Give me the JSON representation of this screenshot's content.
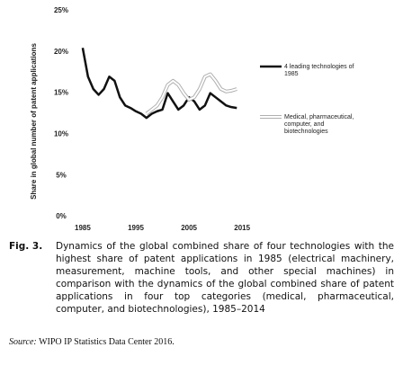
{
  "chart_data": {
    "type": "line",
    "y_label": "Share in global number of patent applications",
    "x": [
      1985,
      1986,
      1987,
      1988,
      1989,
      1990,
      1991,
      1992,
      1993,
      1994,
      1995,
      1996,
      1997,
      1998,
      1999,
      2000,
      2001,
      2002,
      2003,
      2004,
      2005,
      2006,
      2007,
      2008,
      2009,
      2010,
      2011,
      2012,
      2013,
      2014
    ],
    "series": [
      {
        "name": "4 leading technologies of 1985",
        "color": "#111111",
        "values": [
          20.5,
          17,
          15.5,
          14.8,
          15.5,
          17,
          16.5,
          14.5,
          13.5,
          13.2,
          12.8,
          12.5,
          12,
          12.5,
          12.8,
          13,
          15,
          14,
          13,
          13.5,
          14.5,
          14,
          13,
          13.5,
          15,
          14.5,
          14,
          13.5,
          13.3,
          13.2
        ]
      },
      {
        "name": "Medical, pharmaceutical, computer, and biotechnologies",
        "color": "#b0b0b0",
        "values": [
          null,
          null,
          null,
          null,
          null,
          null,
          null,
          null,
          null,
          null,
          null,
          null,
          12.5,
          13,
          13.5,
          14.5,
          16,
          16.5,
          16,
          15,
          14.2,
          14.5,
          15.5,
          17,
          17.3,
          16.5,
          15.5,
          15.2,
          15.3,
          15.5
        ]
      }
    ],
    "xlim": [
      1984,
      2017
    ],
    "xticks": [
      1985,
      1995,
      2005,
      2015
    ],
    "ylim": [
      0,
      25
    ],
    "yticks": [
      {
        "value": 0,
        "label": "0%"
      },
      {
        "value": 5,
        "label": "5%"
      },
      {
        "value": 10,
        "label": "10%"
      },
      {
        "value": 15,
        "label": "15%"
      },
      {
        "value": 20,
        "label": "20%"
      },
      {
        "value": 25,
        "label": "25%"
      }
    ]
  },
  "caption": {
    "label": "Fig. 3.",
    "text": "Dynamics of the global combined share of four technologies with the highest share of patent applications in 1985 (electrical machinery, measurement, machine tools, and other special machines) in comparison with the dynamics of the global combined share of patent applications in four top categories (medical, pharmaceutical, computer, and biotechnologies), 1985–2014"
  },
  "source": {
    "label": "Source:",
    "text": "WIPO IP Statistics Data Center 2016."
  }
}
